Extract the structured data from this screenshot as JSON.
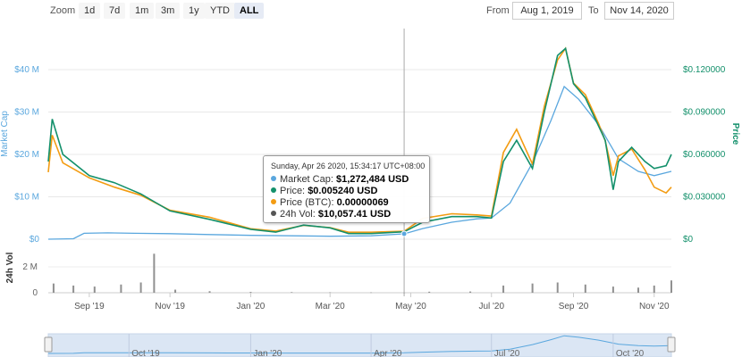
{
  "toolbar": {
    "zoom_label": "Zoom",
    "buttons": [
      "1d",
      "7d",
      "1m",
      "3m",
      "1y",
      "YTD",
      "ALL"
    ],
    "active": "ALL",
    "from_label": "From",
    "from_value": "Aug 1, 2019",
    "to_label": "To",
    "to_value": "Nov 14, 2020"
  },
  "tooltip": {
    "header": "Sunday, Apr 26 2020, 15:34:17 UTC+08:00",
    "rows": [
      {
        "label": "Market Cap:",
        "value": "$1,272,484 USD",
        "color": "#5aa7de"
      },
      {
        "label": "Price:",
        "value": "$0.005240 USD",
        "color": "#13906b"
      },
      {
        "label": "Price (BTC):",
        "value": "0.00000069",
        "color": "#f39c12"
      },
      {
        "label": "24h Vol:",
        "value": "$10,057.41 USD",
        "color": "#555555"
      }
    ]
  },
  "colors": {
    "market_cap": "#5aa7de",
    "price": "#13906b",
    "price_btc": "#f39c12",
    "volume": "#909090",
    "crosshair": "#aaaaaa",
    "navigator_fill": "#dbe6f4"
  },
  "chart_data": {
    "type": "line",
    "x_range": [
      "2019-08-01",
      "2020-11-14"
    ],
    "x_ticks": [
      "Sep '19",
      "Nov '19",
      "Jan '20",
      "Mar '20",
      "May '20",
      "Jul '20",
      "Sep '20",
      "Nov '20"
    ],
    "navigator_ticks": [
      "Oct '19",
      "Jan '20",
      "Apr '20",
      "Jul '20",
      "Oct '20"
    ],
    "y_left": {
      "label": "Market Cap",
      "ticks": [
        "$0",
        "$10 M",
        "$20 M",
        "$30 M",
        "$40 M"
      ],
      "range": [
        0,
        40000000
      ]
    },
    "y_right": {
      "label": "Price",
      "ticks": [
        "$0",
        "$0.030000",
        "$0.060000",
        "$0.090000",
        "$0.120000"
      ],
      "range": [
        0,
        0.12
      ]
    },
    "y_vol": {
      "label": "24h Vol",
      "ticks": [
        "0",
        "2 M"
      ]
    },
    "crosshair_date": "2020-04-26",
    "series": [
      {
        "name": "Market Cap",
        "unit": "USD",
        "points": [
          [
            "2019-08-01",
            0
          ],
          [
            "2019-08-20",
            100000
          ],
          [
            "2019-08-28",
            1400000
          ],
          [
            "2019-09-15",
            1500000
          ],
          [
            "2019-10-05",
            1400000
          ],
          [
            "2019-11-01",
            1300000
          ],
          [
            "2019-12-01",
            1100000
          ],
          [
            "2020-01-01",
            900000
          ],
          [
            "2020-02-01",
            800000
          ],
          [
            "2020-03-01",
            700000
          ],
          [
            "2020-04-01",
            800000
          ],
          [
            "2020-04-26",
            1272484
          ],
          [
            "2020-05-10",
            2500000
          ],
          [
            "2020-06-01",
            4000000
          ],
          [
            "2020-06-20",
            4800000
          ],
          [
            "2020-07-01",
            5000000
          ],
          [
            "2020-07-15",
            8500000
          ],
          [
            "2020-08-01",
            18000000
          ],
          [
            "2020-08-15",
            28000000
          ],
          [
            "2020-08-25",
            36000000
          ],
          [
            "2020-09-05",
            33000000
          ],
          [
            "2020-09-20",
            27000000
          ],
          [
            "2020-10-05",
            19000000
          ],
          [
            "2020-10-20",
            16000000
          ],
          [
            "2020-11-01",
            15000000
          ],
          [
            "2020-11-14",
            16000000
          ]
        ]
      },
      {
        "name": "Price",
        "unit": "USD",
        "points": [
          [
            "2019-08-01",
            0.055
          ],
          [
            "2019-08-04",
            0.085
          ],
          [
            "2019-08-12",
            0.06
          ],
          [
            "2019-09-01",
            0.045
          ],
          [
            "2019-09-20",
            0.04
          ],
          [
            "2019-10-10",
            0.032
          ],
          [
            "2019-11-01",
            0.02
          ],
          [
            "2019-12-01",
            0.014
          ],
          [
            "2020-01-01",
            0.007
          ],
          [
            "2020-01-20",
            0.005
          ],
          [
            "2020-02-10",
            0.01
          ],
          [
            "2020-03-01",
            0.008
          ],
          [
            "2020-03-15",
            0.004
          ],
          [
            "2020-04-01",
            0.004
          ],
          [
            "2020-04-26",
            0.00524
          ],
          [
            "2020-05-10",
            0.012
          ],
          [
            "2020-06-01",
            0.016
          ],
          [
            "2020-06-20",
            0.016
          ],
          [
            "2020-07-01",
            0.015
          ],
          [
            "2020-07-10",
            0.055
          ],
          [
            "2020-07-20",
            0.07
          ],
          [
            "2020-08-01",
            0.05
          ],
          [
            "2020-08-10",
            0.09
          ],
          [
            "2020-08-20",
            0.13
          ],
          [
            "2020-08-26",
            0.135
          ],
          [
            "2020-09-01",
            0.11
          ],
          [
            "2020-09-10",
            0.1
          ],
          [
            "2020-09-20",
            0.08
          ],
          [
            "2020-09-25",
            0.07
          ],
          [
            "2020-10-01",
            0.035
          ],
          [
            "2020-10-05",
            0.055
          ],
          [
            "2020-10-15",
            0.065
          ],
          [
            "2020-10-25",
            0.055
          ],
          [
            "2020-11-01",
            0.05
          ],
          [
            "2020-11-10",
            0.052
          ],
          [
            "2020-11-14",
            0.06
          ]
        ]
      },
      {
        "name": "Price (BTC)",
        "unit": "BTC",
        "points": [
          [
            "2019-08-01",
            5.8e-06
          ],
          [
            "2019-08-04",
            9e-06
          ],
          [
            "2019-08-12",
            6.6e-06
          ],
          [
            "2019-09-01",
            5.3e-06
          ],
          [
            "2019-09-20",
            4.5e-06
          ],
          [
            "2019-10-10",
            3.8e-06
          ],
          [
            "2019-11-01",
            2.5e-06
          ],
          [
            "2019-12-01",
            1.9e-06
          ],
          [
            "2020-01-01",
            9e-07
          ],
          [
            "2020-01-20",
            7e-07
          ],
          [
            "2020-02-10",
            1.2e-06
          ],
          [
            "2020-03-01",
            1e-06
          ],
          [
            "2020-03-15",
            6e-07
          ],
          [
            "2020-04-01",
            6e-07
          ],
          [
            "2020-04-26",
            6.9e-07
          ],
          [
            "2020-05-10",
            1.8e-06
          ],
          [
            "2020-06-01",
            2.2e-06
          ],
          [
            "2020-06-20",
            2.1e-06
          ],
          [
            "2020-07-01",
            2e-06
          ],
          [
            "2020-07-10",
            7.5e-06
          ],
          [
            "2020-07-20",
            9.5e-06
          ],
          [
            "2020-08-01",
            6.5e-06
          ],
          [
            "2020-08-10",
            1.15e-05
          ],
          [
            "2020-08-20",
            1.55e-05
          ],
          [
            "2020-08-26",
            1.65e-05
          ],
          [
            "2020-09-01",
            1.35e-05
          ],
          [
            "2020-09-10",
            1.25e-05
          ],
          [
            "2020-09-20",
            1e-05
          ],
          [
            "2020-09-25",
            8.5e-06
          ],
          [
            "2020-10-01",
            5.5e-06
          ],
          [
            "2020-10-05",
            7.2e-06
          ],
          [
            "2020-10-15",
            7.8e-06
          ],
          [
            "2020-10-25",
            6e-06
          ],
          [
            "2020-11-01",
            4.5e-06
          ],
          [
            "2020-11-10",
            4e-06
          ],
          [
            "2020-11-14",
            4.5e-06
          ]
        ]
      },
      {
        "name": "24h Vol",
        "unit": "USD",
        "points": [
          [
            "2019-08-05",
            900000
          ],
          [
            "2019-08-20",
            700000
          ],
          [
            "2019-09-05",
            600000
          ],
          [
            "2019-09-25",
            800000
          ],
          [
            "2019-10-10",
            1000000
          ],
          [
            "2019-10-20",
            3800000
          ],
          [
            "2019-11-05",
            300000
          ],
          [
            "2019-12-01",
            150000
          ],
          [
            "2020-01-01",
            80000
          ],
          [
            "2020-02-01",
            60000
          ],
          [
            "2020-03-01",
            40000
          ],
          [
            "2020-04-01",
            30000
          ],
          [
            "2020-04-26",
            10057.41
          ],
          [
            "2020-05-15",
            100000
          ],
          [
            "2020-06-15",
            120000
          ],
          [
            "2020-07-10",
            700000
          ],
          [
            "2020-08-01",
            900000
          ],
          [
            "2020-08-20",
            1000000
          ],
          [
            "2020-09-10",
            800000
          ],
          [
            "2020-10-01",
            600000
          ],
          [
            "2020-10-20",
            500000
          ],
          [
            "2020-11-01",
            700000
          ],
          [
            "2020-11-14",
            1200000
          ]
        ]
      }
    ]
  }
}
